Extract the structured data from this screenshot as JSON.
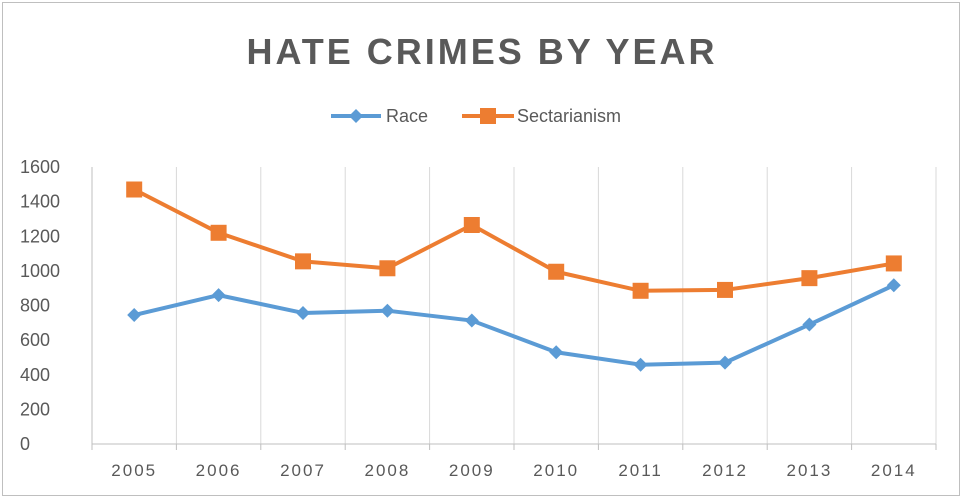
{
  "chart_data": {
    "type": "line",
    "title": "HATE CRIMES BY YEAR",
    "categories": [
      "2005",
      "2006",
      "2007",
      "2008",
      "2009",
      "2010",
      "2011",
      "2012",
      "2013",
      "2014"
    ],
    "series": [
      {
        "name": "Race",
        "color": "#5b9bd5",
        "marker": "diamond",
        "values": [
          745,
          860,
          757,
          770,
          713,
          530,
          458,
          470,
          690,
          917
        ]
      },
      {
        "name": "Sectarianism",
        "color": "#ed7d31",
        "marker": "square",
        "values": [
          1470,
          1220,
          1055,
          1015,
          1265,
          995,
          885,
          890,
          958,
          1043
        ]
      }
    ],
    "yticks": [
      "0",
      "200",
      "400",
      "600",
      "800",
      "1000",
      "1200",
      "1400",
      "1600"
    ],
    "ylim": [
      0,
      1600
    ],
    "grid": "vertical",
    "legend_position": "top"
  }
}
